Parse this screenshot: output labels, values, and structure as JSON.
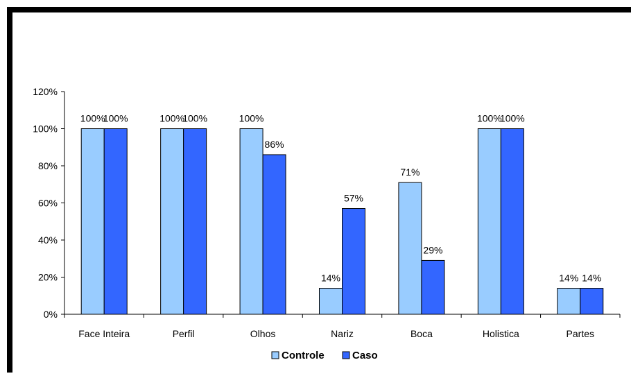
{
  "chart_data": {
    "type": "bar",
    "title": "",
    "xlabel": "",
    "ylabel": "",
    "categories": [
      "Face Inteira",
      "Perfil",
      "Olhos",
      "Nariz",
      "Boca",
      "Holistica",
      "Partes"
    ],
    "series": [
      {
        "name": "Controle",
        "color": "#99ccff",
        "values": [
          100,
          100,
          100,
          14,
          71,
          100,
          14
        ]
      },
      {
        "name": "Caso",
        "color": "#3366ff",
        "values": [
          100,
          100,
          86,
          57,
          29,
          100,
          14
        ]
      }
    ],
    "ylim": [
      0,
      120
    ],
    "yticks": [
      0,
      20,
      40,
      60,
      80,
      100,
      120
    ],
    "value_suffix": "%",
    "grid": false,
    "legend_position": "bottom-center"
  }
}
